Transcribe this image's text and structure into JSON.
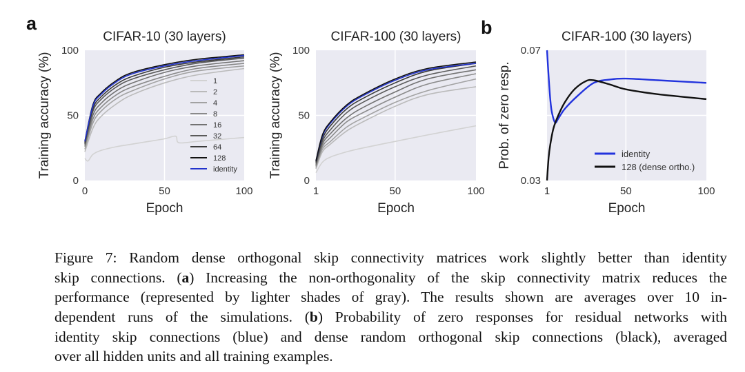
{
  "panel_labels": {
    "a": "a",
    "b": "b"
  },
  "chart_data": [
    {
      "type": "line",
      "title": "CIFAR-10 (30 layers)",
      "xlabel": "Epoch",
      "ylabel": "Training accuracy (%)",
      "xlim": [
        0,
        100
      ],
      "ylim": [
        0,
        100
      ],
      "xticks": [
        "0",
        "50",
        "100"
      ],
      "xtick_values": [
        0,
        50,
        100
      ],
      "yticks": [
        "0",
        "50",
        "100"
      ],
      "ytick_values": [
        0,
        50,
        100
      ],
      "grid": true,
      "background": "#eaeaf2",
      "legend_position": "lower-right",
      "series": [
        {
          "name": "1",
          "color": "#d2d2d2",
          "x": [
            0,
            2,
            5,
            10,
            20,
            30,
            40,
            50,
            57,
            59,
            70,
            80,
            100
          ],
          "y": [
            17,
            15,
            20,
            23,
            26,
            28,
            30,
            32,
            34,
            29,
            30,
            31,
            33
          ]
        },
        {
          "name": "2",
          "color": "#bababa",
          "x": [
            0,
            5,
            10,
            20,
            30,
            50,
            70,
            100
          ],
          "y": [
            22,
            40,
            49,
            59,
            66,
            75,
            81,
            86
          ]
        },
        {
          "name": "4",
          "color": "#a2a2a2",
          "x": [
            0,
            5,
            10,
            20,
            30,
            50,
            70,
            100
          ],
          "y": [
            24,
            44,
            53,
            63,
            69,
            78,
            84,
            88
          ]
        },
        {
          "name": "8",
          "color": "#8a8a8a",
          "x": [
            0,
            5,
            10,
            20,
            30,
            50,
            70,
            100
          ],
          "y": [
            26,
            47,
            56,
            66,
            72,
            80,
            86,
            90
          ]
        },
        {
          "name": "16",
          "color": "#727272",
          "x": [
            0,
            5,
            10,
            20,
            30,
            50,
            70,
            100
          ],
          "y": [
            27,
            50,
            59,
            69,
            75,
            83,
            88,
            92
          ]
        },
        {
          "name": "32",
          "color": "#5a5a5a",
          "x": [
            0,
            5,
            10,
            20,
            30,
            50,
            70,
            100
          ],
          "y": [
            28,
            53,
            62,
            72,
            78,
            85,
            90,
            94
          ]
        },
        {
          "name": "64",
          "color": "#3a3a3a",
          "x": [
            0,
            5,
            10,
            20,
            30,
            50,
            70,
            100
          ],
          "y": [
            29,
            55,
            64,
            74,
            80,
            87,
            91,
            95
          ]
        },
        {
          "name": "128",
          "color": "#111111",
          "x": [
            0,
            5,
            10,
            20,
            30,
            50,
            70,
            100
          ],
          "y": [
            30,
            58,
            67,
            77,
            83,
            89,
            93,
            96.5
          ]
        },
        {
          "name": "identity",
          "color": "#2233cc",
          "x": [
            0,
            5,
            10,
            20,
            30,
            50,
            70,
            100
          ],
          "y": [
            30,
            57,
            66,
            76,
            82,
            88,
            92,
            96
          ]
        }
      ]
    },
    {
      "type": "line",
      "title": "CIFAR-100 (30 layers)",
      "xlabel": "Epoch",
      "ylabel": "Training accuracy (%)",
      "xlim": [
        1,
        100
      ],
      "ylim": [
        0,
        100
      ],
      "xticks": [
        "1",
        "50",
        "100"
      ],
      "xtick_values": [
        1,
        50,
        100
      ],
      "yticks": [
        "0",
        "50",
        "100"
      ],
      "ytick_values": [
        0,
        50,
        100
      ],
      "grid": true,
      "background": "#eaeaf2",
      "series": [
        {
          "color": "#d2d2d2",
          "x": [
            1,
            5,
            10,
            20,
            30,
            50,
            70,
            100
          ],
          "y": [
            6,
            14,
            18,
            22,
            25,
            30,
            35,
            42
          ]
        },
        {
          "color": "#bababa",
          "x": [
            1,
            5,
            10,
            20,
            30,
            50,
            70,
            100
          ],
          "y": [
            9,
            22,
            28,
            38,
            45,
            57,
            66,
            72
          ]
        },
        {
          "color": "#a2a2a2",
          "x": [
            1,
            5,
            10,
            20,
            30,
            50,
            70,
            100
          ],
          "y": [
            10,
            24,
            30,
            41,
            48,
            60,
            69,
            78
          ]
        },
        {
          "color": "#8a8a8a",
          "x": [
            1,
            5,
            10,
            20,
            30,
            50,
            70,
            100
          ],
          "y": [
            11,
            26,
            33,
            45,
            52,
            64,
            74,
            82
          ]
        },
        {
          "color": "#727272",
          "x": [
            1,
            5,
            10,
            20,
            30,
            50,
            70,
            100
          ],
          "y": [
            12,
            28,
            36,
            48,
            56,
            68,
            78,
            85
          ]
        },
        {
          "color": "#5a5a5a",
          "x": [
            1,
            5,
            10,
            20,
            30,
            50,
            70,
            100
          ],
          "y": [
            13,
            30,
            39,
            52,
            60,
            72,
            81,
            88
          ]
        },
        {
          "color": "#3a3a3a",
          "x": [
            1,
            5,
            10,
            20,
            30,
            50,
            70,
            100
          ],
          "y": [
            14,
            32,
            42,
            55,
            63,
            75,
            84,
            90
          ]
        },
        {
          "color": "#2233cc",
          "x": [
            1,
            5,
            10,
            20,
            30,
            50,
            70,
            100
          ],
          "y": [
            15,
            34,
            44,
            57,
            65,
            77,
            85,
            90
          ]
        },
        {
          "color": "#111111",
          "x": [
            1,
            5,
            10,
            20,
            30,
            50,
            70,
            100
          ],
          "y": [
            15,
            35,
            45,
            58,
            66,
            78,
            86,
            91
          ]
        }
      ]
    },
    {
      "type": "line",
      "title": "CIFAR-100 (30 layers)",
      "xlabel": "Epoch",
      "ylabel": "Prob. of zero resp.",
      "xlim": [
        1,
        100
      ],
      "ylim": [
        0.03,
        0.07
      ],
      "xticks": [
        "1",
        "50",
        "100"
      ],
      "xtick_values": [
        1,
        50,
        100
      ],
      "yticks": [
        "0.03",
        "0.07"
      ],
      "ytick_values": [
        0.03,
        0.07
      ],
      "grid": true,
      "background": "#eaeaf2",
      "legend_position": "lower-right",
      "series": [
        {
          "name": "identity",
          "color": "#2233dd",
          "x": [
            1,
            2,
            3,
            4,
            6,
            8,
            12,
            20,
            30,
            40,
            50,
            70,
            100
          ],
          "y": [
            0.07,
            0.062,
            0.055,
            0.051,
            0.0478,
            0.049,
            0.052,
            0.056,
            0.06,
            0.061,
            0.0613,
            0.0608,
            0.06
          ]
        },
        {
          "name": "128 (dense ortho.)",
          "color": "#111111",
          "x": [
            1,
            2,
            3,
            5,
            8,
            12,
            18,
            25,
            30,
            40,
            50,
            70,
            100
          ],
          "y": [
            0.03,
            0.037,
            0.041,
            0.046,
            0.05,
            0.054,
            0.058,
            0.0605,
            0.0608,
            0.0595,
            0.058,
            0.0565,
            0.055
          ]
        }
      ]
    }
  ],
  "caption": {
    "lines": [
      [
        {
          "text": "Figure 7: Random dense orthogonal skip connectivity matrices work slightly better than identity"
        }
      ],
      [
        {
          "text": "skip connections. ("
        },
        {
          "text": "a",
          "bold": true
        },
        {
          "text": ") Increasing the non-orthogonality of the skip connectivity matrix reduces the"
        }
      ],
      [
        {
          "text": "performance (represented by lighter shades of gray).  The results shown are averages over 10 in-"
        }
      ],
      [
        {
          "text": "dependent runs of the simulations.  ("
        },
        {
          "text": "b",
          "bold": true
        },
        {
          "text": ") Probability of zero responses for residual networks with"
        }
      ],
      [
        {
          "text": "identity skip connections (blue) and dense random orthogonal skip connections (black), averaged"
        }
      ],
      [
        {
          "text": "over all hidden units and all training examples."
        }
      ]
    ]
  }
}
